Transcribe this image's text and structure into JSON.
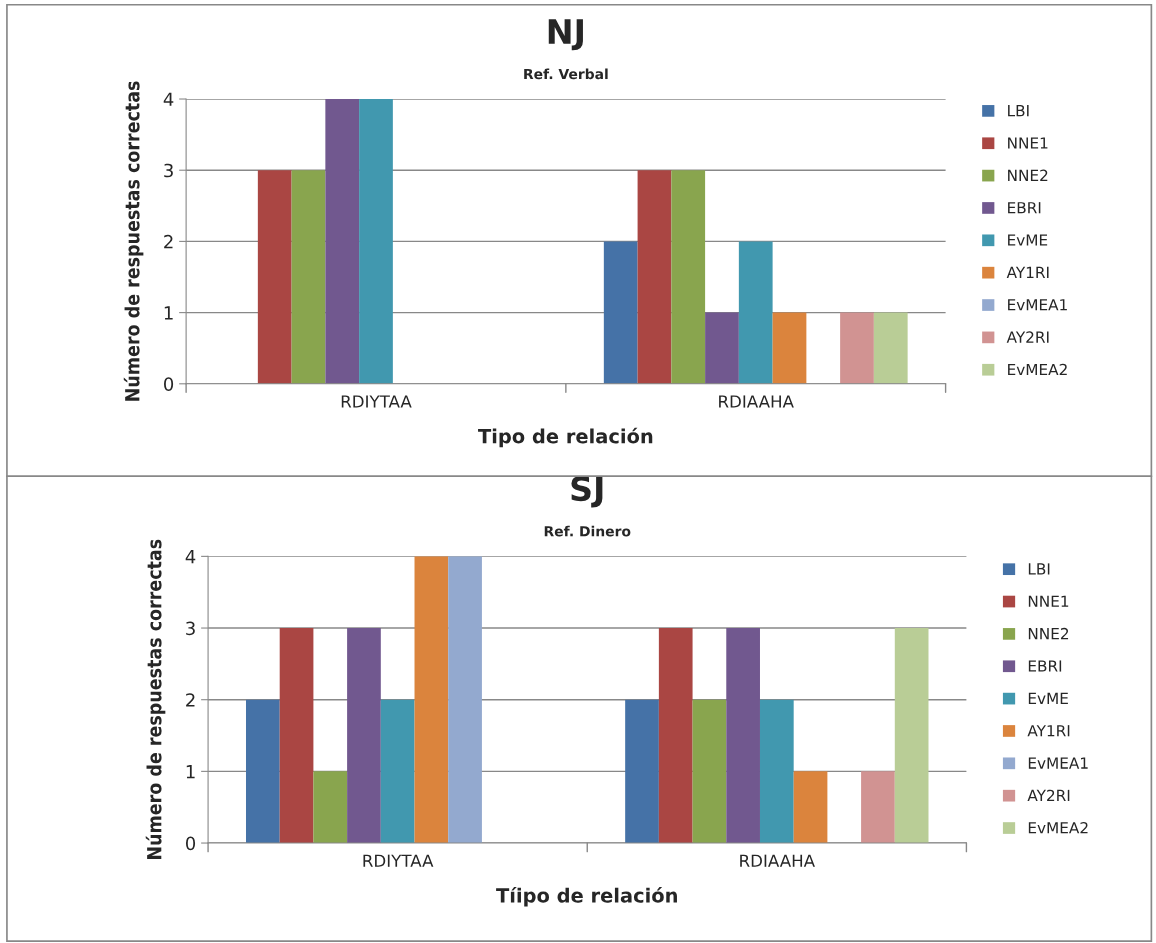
{
  "chart_data": [
    {
      "type": "bar",
      "title": "NJ",
      "subtitle": "Ref. Verbal",
      "xlabel": "Tipo de relación",
      "ylabel": "Número de respuestas correctas",
      "categories": [
        "RDIYTAA",
        "RDIAAHA"
      ],
      "ylim": [
        0,
        4
      ],
      "yticks": [
        0,
        1,
        2,
        3,
        4
      ],
      "grid": "y",
      "legend": "right",
      "series": [
        {
          "name": "LBI",
          "color": "#4572a7",
          "values": [
            0,
            2
          ]
        },
        {
          "name": "NNE1",
          "color": "#aa4643",
          "values": [
            3,
            3
          ]
        },
        {
          "name": "NNE2",
          "color": "#89a54e",
          "values": [
            3,
            3
          ]
        },
        {
          "name": "EBRI",
          "color": "#71588f",
          "values": [
            4,
            1
          ]
        },
        {
          "name": "EvME",
          "color": "#4198af",
          "values": [
            4,
            2
          ]
        },
        {
          "name": "AY1RI",
          "color": "#db843d",
          "values": [
            0,
            1
          ]
        },
        {
          "name": "EvMEA1",
          "color": "#93a9cf",
          "values": [
            0,
            0
          ]
        },
        {
          "name": "AY2RI",
          "color": "#d19392",
          "values": [
            0,
            1
          ]
        },
        {
          "name": "EvMEA2",
          "color": "#b9cd96",
          "values": [
            0,
            1
          ]
        }
      ]
    },
    {
      "type": "bar",
      "title": "SJ",
      "subtitle": "Ref. Dinero",
      "xlabel": "Tíipo de relación",
      "ylabel": "Número de respuestas correctas",
      "categories": [
        "RDIYTAA",
        "RDIAAHA"
      ],
      "ylim": [
        0,
        4
      ],
      "yticks": [
        0,
        1,
        2,
        3,
        4
      ],
      "grid": "y",
      "legend": "right",
      "series": [
        {
          "name": "LBI",
          "color": "#4572a7",
          "values": [
            2,
            2
          ]
        },
        {
          "name": "NNE1",
          "color": "#aa4643",
          "values": [
            3,
            3
          ]
        },
        {
          "name": "NNE2",
          "color": "#89a54e",
          "values": [
            1,
            2
          ]
        },
        {
          "name": "EBRI",
          "color": "#71588f",
          "values": [
            3,
            3
          ]
        },
        {
          "name": "EvME",
          "color": "#4198af",
          "values": [
            2,
            2
          ]
        },
        {
          "name": "AY1RI",
          "color": "#db843d",
          "values": [
            4,
            1
          ]
        },
        {
          "name": "EvMEA1",
          "color": "#93a9cf",
          "values": [
            4,
            0
          ]
        },
        {
          "name": "AY2RI",
          "color": "#d19392",
          "values": [
            0,
            1
          ]
        },
        {
          "name": "EvMEA2",
          "color": "#b9cd96",
          "values": [
            0,
            3
          ]
        }
      ]
    }
  ]
}
